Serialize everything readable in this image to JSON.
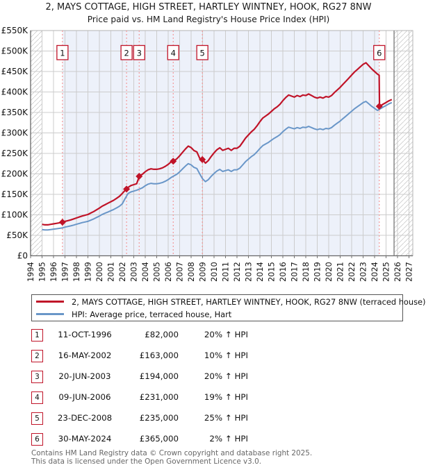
{
  "page": {
    "title_line1": "2, MAYS COTTAGE, HIGH STREET, HARTLEY WINTNEY, HOOK, RG27 8NW",
    "title_line2": "Price paid vs. HM Land Registry's House Price Index (HPI)",
    "footer_line1": "Contains HM Land Registry data © Crown copyright and database right 2025.",
    "footer_line2": "This data is licensed under the Open Government Licence v3.0."
  },
  "legend": {
    "series1_label": "2, MAYS COTTAGE, HIGH STREET, HARTLEY WINTNEY, HOOK, RG27 8NW (terraced house)",
    "series2_label": "HPI: Average price, terraced house, Hart"
  },
  "transactions": [
    {
      "n": "1",
      "date": "11-OCT-1996",
      "price": "£82,000",
      "hpi": "20% ↑ HPI"
    },
    {
      "n": "2",
      "date": "16-MAY-2002",
      "price": "£163,000",
      "hpi": "10% ↑ HPI"
    },
    {
      "n": "3",
      "date": "20-JUN-2003",
      "price": "£194,000",
      "hpi": "20% ↑ HPI"
    },
    {
      "n": "4",
      "date": "09-JUN-2006",
      "price": "£231,000",
      "hpi": "19% ↑ HPI"
    },
    {
      "n": "5",
      "date": "23-DEC-2008",
      "price": "£235,000",
      "hpi": "25% ↑ HPI"
    },
    {
      "n": "6",
      "date": "30-MAY-2024",
      "price": "£365,000",
      "hpi": "2% ↑ HPI"
    }
  ],
  "chart_data": {
    "type": "line",
    "title": "Price paid vs. HM Land Registry's House Price Index (HPI)",
    "x_axis": {
      "min": 1994,
      "max": 2027,
      "tick_step": 1,
      "tick_labels": [
        "1994",
        "1995",
        "1996",
        "1997",
        "1998",
        "1999",
        "2000",
        "2001",
        "2002",
        "2003",
        "2004",
        "2005",
        "2006",
        "2007",
        "2008",
        "2009",
        "2010",
        "2011",
        "2012",
        "2013",
        "2014",
        "2015",
        "2016",
        "2017",
        "2018",
        "2019",
        "2020",
        "2021",
        "2022",
        "2023",
        "2024",
        "2025",
        "2026",
        "2027"
      ]
    },
    "y_axis": {
      "min_k": 0,
      "max_k": 550,
      "tick_step_k": 50,
      "tick_labels": [
        "£0",
        "£50K",
        "£100K",
        "£150K",
        "£200K",
        "£250K",
        "£300K",
        "£350K",
        "£400K",
        "£450K",
        "£500K",
        "£550K"
      ]
    },
    "grid": true,
    "legend_position": "below",
    "shaded_band": {
      "from": 1996.78,
      "to": 2024.41
    },
    "hatch": {
      "left_from": 1994.0,
      "left_to": 1995.0,
      "right_from": 2025.7,
      "right_to": 2027.33
    },
    "colors": {
      "line_red": "#c01328",
      "line_blue": "#6996c8",
      "band": "#edf1fa",
      "grid": "#cccccc",
      "dotted": "#f49090",
      "axis": "#666666",
      "border": "#b4b4b4",
      "now_line": "#808080",
      "hatch": "#cccccc"
    },
    "series": [
      {
        "name": "2, MAYS COTTAGE, HIGH STREET, HARTLEY WINTNEY, HOOK, RG27 8NW (terraced house)",
        "color": "#c01328",
        "x_start": 1995.0,
        "x_step": 0.25,
        "values_k": [
          76.8,
          75.6,
          75.6,
          76.8,
          78,
          79.2,
          80.4,
          81.6,
          84,
          85.8,
          87.6,
          90,
          92.4,
          94.8,
          97.2,
          99,
          100.8,
          104.4,
          108,
          112.2,
          116.4,
          121.2,
          124.8,
          128.4,
          132,
          135.6,
          140.4,
          145.2,
          152.4,
          160,
          167,
          171.6,
          173.8,
          176,
          195.6,
          199.2,
          205.2,
          210,
          212.4,
          211.2,
          211.2,
          212.4,
          214.8,
          218.4,
          223.2,
          229.2,
          232.1,
          236.8,
          244,
          252.3,
          260.6,
          267.8,
          264.2,
          257,
          253.5,
          238,
          235,
          226.3,
          232.5,
          242.5,
          251.3,
          258.8,
          263.8,
          257.5,
          260,
          262.5,
          257.5,
          262.5,
          262.5,
          267.5,
          277.5,
          287.5,
          295,
          302.5,
          308.8,
          317.5,
          327.5,
          336.3,
          341.3,
          346.3,
          352.5,
          358.8,
          363.8,
          370,
          378.8,
          386.3,
          392.5,
          390,
          387.5,
          391.3,
          388.8,
          392.5,
          391.3,
          395,
          391.3,
          387.5,
          385,
          387.5,
          385,
          388.8,
          387.5,
          391.3,
          398.8,
          405,
          411.3,
          418.8,
          426.3,
          433.8,
          441.3,
          448.8,
          455,
          461.3,
          467.5,
          471.3,
          463.8,
          456.3,
          450,
          443.8,
          366.2,
          370.3,
          374.3,
          378.4,
          381.5
        ],
        "inserts": [
          [
            2024.4,
            441
          ],
          [
            2024.43,
            365
          ]
        ]
      },
      {
        "name": "HPI: Average price, terraced house, Hart",
        "color": "#6996c8",
        "x_start": 1995.0,
        "x_step": 0.25,
        "values_k": [
          64,
          63,
          63,
          64,
          65,
          66,
          67,
          68,
          70,
          71.5,
          73,
          75,
          77,
          79,
          81,
          82.5,
          84,
          87,
          90,
          93.5,
          97,
          101,
          104,
          107,
          110,
          113,
          117,
          121,
          127,
          140,
          152,
          156,
          158,
          160,
          163,
          166,
          171,
          175,
          177,
          176,
          176,
          177,
          179,
          182,
          186,
          191,
          195,
          199,
          205,
          212,
          219,
          225,
          222,
          216,
          213,
          200,
          188,
          181,
          186,
          194,
          201,
          207,
          211,
          206,
          208,
          210,
          206,
          210,
          210,
          214,
          222,
          230,
          236,
          242,
          247,
          254,
          262,
          269,
          273,
          277,
          282,
          287,
          291,
          296,
          303,
          309,
          314,
          312,
          310,
          313,
          311,
          314,
          313,
          316,
          313,
          310,
          308,
          310,
          308,
          311,
          310,
          313,
          319,
          324,
          329,
          335,
          341,
          347,
          353,
          359,
          364,
          369,
          374,
          377,
          371,
          365,
          360,
          355,
          359,
          363,
          367,
          371,
          374
        ]
      }
    ],
    "sales": [
      {
        "n": "1",
        "x": 1996.78,
        "price_k": 82
      },
      {
        "n": "2",
        "x": 2002.37,
        "price_k": 163
      },
      {
        "n": "3",
        "x": 2003.47,
        "price_k": 194
      },
      {
        "n": "4",
        "x": 2006.44,
        "price_k": 231
      },
      {
        "n": "5",
        "x": 2008.98,
        "price_k": 235
      },
      {
        "n": "6",
        "x": 2024.41,
        "price_k": 365
      }
    ]
  }
}
